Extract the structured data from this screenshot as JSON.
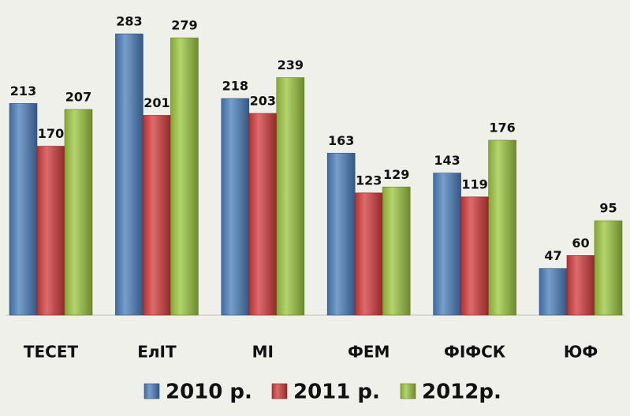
{
  "chart_data": {
    "type": "bar",
    "categories": [
      "ТЕСЕТ",
      "ЕлІТ",
      "МІ",
      "ФЕМ",
      "ФІФСК",
      "ЮФ"
    ],
    "series": [
      {
        "name": "2010 р.",
        "color": "#4a7ebb",
        "values": [
          213,
          283,
          218,
          163,
          143,
          47
        ]
      },
      {
        "name": "2011 р.",
        "color": "#d33a3a",
        "values": [
          170,
          201,
          203,
          123,
          119,
          60
        ]
      },
      {
        "name": "2012р.",
        "color": "#9bc53d",
        "values": [
          207,
          279,
          239,
          129,
          176,
          95
        ]
      }
    ],
    "legend": "bottom",
    "grid": false
  }
}
